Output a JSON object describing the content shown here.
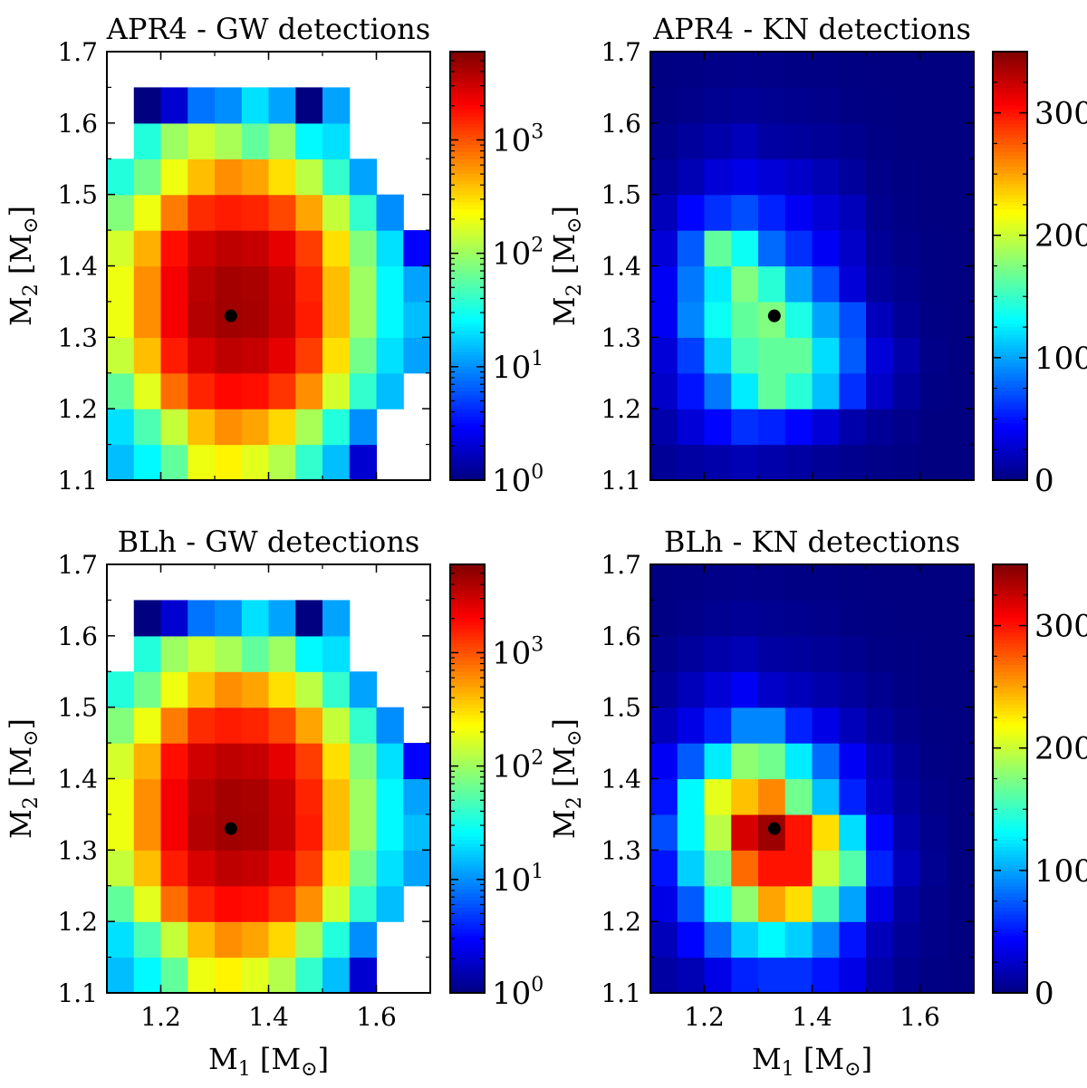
{
  "figure": {
    "xlabel_main": "M",
    "xlabel_sub": "1",
    "ylabel_main": "M",
    "ylabel_sub": "2",
    "unit_open": " [M",
    "unit_sun": "⊙",
    "unit_close": "]"
  },
  "chart_data": [
    {
      "id": "apr4-gw",
      "type": "heatmap",
      "title": "APR4 - GW detections",
      "x_edges": [
        1.1,
        1.15,
        1.2,
        1.25,
        1.3,
        1.35,
        1.4,
        1.45,
        1.5,
        1.55,
        1.6,
        1.65,
        1.7
      ],
      "y_edges": [
        1.1,
        1.15,
        1.2,
        1.25,
        1.3,
        1.35,
        1.4,
        1.45,
        1.5,
        1.55,
        1.6,
        1.65,
        1.7
      ],
      "xlim": [
        1.1,
        1.7
      ],
      "ylim": [
        1.1,
        1.7
      ],
      "xticks": [
        1.2,
        1.4,
        1.6
      ],
      "xtick_labels": [
        "1.2",
        "1.4",
        "1.6"
      ],
      "yticks": [
        1.1,
        1.2,
        1.3,
        1.4,
        1.5,
        1.6,
        1.7
      ],
      "ytick_labels": [
        "1.1",
        "1.2",
        "1.3",
        "1.4",
        "1.5",
        "1.6",
        "1.7"
      ],
      "show_xtick_labels": false,
      "show_xlabel": false,
      "marker": [
        1.33,
        1.33
      ],
      "z": [
        [
          15,
          25,
          60,
          200,
          250,
          180,
          120,
          40,
          15,
          2,
          null,
          null
        ],
        [
          20,
          50,
          140,
          400,
          600,
          500,
          320,
          110,
          35,
          10,
          null,
          null
        ],
        [
          60,
          180,
          800,
          1500,
          1900,
          1800,
          1300,
          600,
          160,
          40,
          15,
          null
        ],
        [
          140,
          400,
          1600,
          2800,
          3500,
          3300,
          2500,
          1200,
          300,
          70,
          20,
          12
        ],
        [
          200,
          600,
          2200,
          3800,
          4500,
          4300,
          3300,
          1600,
          400,
          100,
          25,
          15
        ],
        [
          200,
          600,
          2200,
          3600,
          4400,
          4200,
          3200,
          1500,
          400,
          100,
          25,
          12
        ],
        [
          160,
          450,
          1800,
          3000,
          3500,
          3300,
          2500,
          1200,
          300,
          80,
          20,
          3
        ],
        [
          80,
          200,
          700,
          1400,
          1600,
          1500,
          1100,
          500,
          140,
          40,
          10,
          null
        ],
        [
          35,
          70,
          200,
          400,
          600,
          500,
          300,
          130,
          40,
          12,
          null,
          null
        ],
        [
          null,
          35,
          100,
          150,
          110,
          60,
          100,
          25,
          20,
          null,
          null,
          null
        ],
        [
          null,
          1,
          2,
          8,
          10,
          20,
          12,
          1,
          12,
          null,
          null,
          null
        ],
        [
          null,
          null,
          null,
          null,
          null,
          null,
          null,
          null,
          null,
          null,
          null,
          null
        ]
      ],
      "colorbar": {
        "scale": "log",
        "vmin": 1,
        "vmax": 6000,
        "major_ticks": [
          1,
          10,
          100,
          1000
        ],
        "tick_labels": [
          {
            "base": "10",
            "exp": "0"
          },
          {
            "base": "10",
            "exp": "1"
          },
          {
            "base": "10",
            "exp": "2"
          },
          {
            "base": "10",
            "exp": "3"
          }
        ]
      }
    },
    {
      "id": "apr4-kn",
      "type": "heatmap",
      "title": "APR4 - KN detections",
      "x_edges": [
        1.1,
        1.15,
        1.2,
        1.25,
        1.3,
        1.35,
        1.4,
        1.45,
        1.5,
        1.55,
        1.6,
        1.65,
        1.7
      ],
      "y_edges": [
        1.1,
        1.15,
        1.2,
        1.25,
        1.3,
        1.35,
        1.4,
        1.45,
        1.5,
        1.55,
        1.6,
        1.65,
        1.7
      ],
      "xlim": [
        1.1,
        1.7
      ],
      "ylim": [
        1.1,
        1.7
      ],
      "xticks": [
        1.2,
        1.4,
        1.6
      ],
      "xtick_labels": [
        "1.2",
        "1.4",
        "1.6"
      ],
      "yticks": [
        1.1,
        1.2,
        1.3,
        1.4,
        1.5,
        1.6,
        1.7
      ],
      "ytick_labels": [
        "1.1",
        "1.2",
        "1.3",
        "1.4",
        "1.5",
        "1.6",
        "1.7"
      ],
      "show_xtick_labels": false,
      "show_xlabel": false,
      "marker": [
        1.33,
        1.33
      ],
      "z": [
        [
          8,
          12,
          15,
          18,
          15,
          12,
          8,
          5,
          3,
          2,
          0,
          0
        ],
        [
          15,
          30,
          45,
          60,
          55,
          45,
          30,
          15,
          8,
          4,
          0,
          0
        ],
        [
          25,
          50,
          85,
          125,
          165,
          145,
          110,
          60,
          25,
          10,
          2,
          0
        ],
        [
          30,
          65,
          115,
          155,
          165,
          165,
          120,
          75,
          30,
          15,
          3,
          0
        ],
        [
          40,
          90,
          135,
          165,
          175,
          140,
          100,
          70,
          20,
          8,
          2,
          0
        ],
        [
          40,
          85,
          125,
          175,
          145,
          100,
          70,
          30,
          10,
          5,
          1,
          0
        ],
        [
          30,
          75,
          165,
          135,
          80,
          60,
          40,
          25,
          8,
          3,
          1,
          0
        ],
        [
          20,
          45,
          60,
          70,
          55,
          40,
          30,
          20,
          5,
          2,
          0,
          0
        ],
        [
          10,
          18,
          30,
          35,
          30,
          25,
          18,
          10,
          3,
          1,
          0,
          0
        ],
        [
          5,
          10,
          15,
          20,
          12,
          10,
          8,
          5,
          2,
          0,
          0,
          0
        ],
        [
          2,
          4,
          6,
          8,
          6,
          5,
          4,
          2,
          1,
          0,
          0,
          0
        ],
        [
          1,
          2,
          3,
          4,
          3,
          2,
          2,
          1,
          0,
          0,
          0,
          0
        ]
      ],
      "colorbar": {
        "scale": "linear",
        "vmin": 0,
        "vmax": 350,
        "major_ticks": [
          0,
          100,
          200,
          300
        ],
        "tick_labels": [
          "0",
          "100",
          "200",
          "300"
        ]
      }
    },
    {
      "id": "blh-gw",
      "type": "heatmap",
      "title": "BLh - GW detections",
      "x_edges": [
        1.1,
        1.15,
        1.2,
        1.25,
        1.3,
        1.35,
        1.4,
        1.45,
        1.5,
        1.55,
        1.6,
        1.65,
        1.7
      ],
      "y_edges": [
        1.1,
        1.15,
        1.2,
        1.25,
        1.3,
        1.35,
        1.4,
        1.45,
        1.5,
        1.55,
        1.6,
        1.65,
        1.7
      ],
      "xlim": [
        1.1,
        1.7
      ],
      "ylim": [
        1.1,
        1.7
      ],
      "xticks": [
        1.2,
        1.4,
        1.6
      ],
      "xtick_labels": [
        "1.2",
        "1.4",
        "1.6"
      ],
      "yticks": [
        1.1,
        1.2,
        1.3,
        1.4,
        1.5,
        1.6,
        1.7
      ],
      "ytick_labels": [
        "1.1",
        "1.2",
        "1.3",
        "1.4",
        "1.5",
        "1.6",
        "1.7"
      ],
      "show_xtick_labels": true,
      "show_xlabel": true,
      "marker": [
        1.33,
        1.33
      ],
      "z": [
        [
          15,
          25,
          60,
          200,
          250,
          180,
          120,
          40,
          15,
          2,
          null,
          null
        ],
        [
          20,
          50,
          140,
          400,
          600,
          500,
          320,
          110,
          35,
          10,
          null,
          null
        ],
        [
          60,
          180,
          800,
          1500,
          1900,
          1800,
          1300,
          600,
          160,
          40,
          15,
          null
        ],
        [
          140,
          400,
          1600,
          2800,
          3500,
          3300,
          2500,
          1200,
          300,
          70,
          20,
          12
        ],
        [
          200,
          600,
          2200,
          3800,
          4500,
          4300,
          3300,
          1600,
          400,
          100,
          25,
          15
        ],
        [
          200,
          600,
          2200,
          3600,
          4400,
          4200,
          3200,
          1500,
          400,
          100,
          25,
          12
        ],
        [
          160,
          450,
          1800,
          3000,
          3500,
          3300,
          2500,
          1200,
          300,
          80,
          20,
          3
        ],
        [
          80,
          200,
          700,
          1400,
          1600,
          1500,
          1100,
          500,
          140,
          40,
          10,
          null
        ],
        [
          35,
          70,
          200,
          400,
          600,
          500,
          300,
          130,
          40,
          12,
          null,
          null
        ],
        [
          null,
          35,
          100,
          150,
          110,
          60,
          100,
          25,
          20,
          null,
          null,
          null
        ],
        [
          null,
          1,
          2,
          8,
          10,
          20,
          12,
          1,
          12,
          null,
          null,
          null
        ],
        [
          null,
          null,
          null,
          null,
          null,
          null,
          null,
          null,
          null,
          null,
          null,
          null
        ]
      ],
      "colorbar": {
        "scale": "log",
        "vmin": 1,
        "vmax": 6000,
        "major_ticks": [
          1,
          10,
          100,
          1000
        ],
        "tick_labels": [
          {
            "base": "10",
            "exp": "0"
          },
          {
            "base": "10",
            "exp": "1"
          },
          {
            "base": "10",
            "exp": "2"
          },
          {
            "base": "10",
            "exp": "3"
          }
        ]
      }
    },
    {
      "id": "blh-kn",
      "type": "heatmap",
      "title": "BLh - KN detections",
      "x_edges": [
        1.1,
        1.15,
        1.2,
        1.25,
        1.3,
        1.35,
        1.4,
        1.45,
        1.5,
        1.55,
        1.6,
        1.65,
        1.7
      ],
      "y_edges": [
        1.1,
        1.15,
        1.2,
        1.25,
        1.3,
        1.35,
        1.4,
        1.45,
        1.5,
        1.55,
        1.6,
        1.65,
        1.7
      ],
      "xlim": [
        1.1,
        1.7
      ],
      "ylim": [
        1.1,
        1.7
      ],
      "xticks": [
        1.2,
        1.4,
        1.6
      ],
      "xtick_labels": [
        "1.2",
        "1.4",
        "1.6"
      ],
      "yticks": [
        1.1,
        1.2,
        1.3,
        1.4,
        1.5,
        1.6,
        1.7
      ],
      "ytick_labels": [
        "1.1",
        "1.2",
        "1.3",
        "1.4",
        "1.5",
        "1.6",
        "1.7"
      ],
      "show_xtick_labels": true,
      "show_xlabel": true,
      "marker": [
        1.33,
        1.33
      ],
      "z": [
        [
          12,
          18,
          35,
          55,
          60,
          60,
          50,
          35,
          15,
          5,
          2,
          0
        ],
        [
          20,
          45,
          80,
          115,
          130,
          115,
          90,
          50,
          20,
          8,
          3,
          0
        ],
        [
          35,
          75,
          135,
          180,
          250,
          230,
          160,
          100,
          35,
          12,
          4,
          0
        ],
        [
          50,
          115,
          170,
          270,
          300,
          300,
          200,
          160,
          55,
          20,
          6,
          0
        ],
        [
          70,
          130,
          195,
          320,
          340,
          300,
          230,
          120,
          45,
          15,
          5,
          0
        ],
        [
          50,
          130,
          210,
          240,
          260,
          170,
          110,
          55,
          25,
          10,
          3,
          0
        ],
        [
          40,
          75,
          125,
          180,
          170,
          125,
          80,
          40,
          20,
          8,
          2,
          0
        ],
        [
          20,
          35,
          55,
          90,
          90,
          55,
          35,
          20,
          10,
          4,
          1,
          0
        ],
        [
          10,
          20,
          30,
          40,
          25,
          20,
          15,
          10,
          5,
          2,
          0,
          0
        ],
        [
          5,
          10,
          15,
          18,
          12,
          10,
          8,
          5,
          2,
          1,
          0,
          0
        ],
        [
          2,
          4,
          6,
          8,
          6,
          5,
          4,
          2,
          1,
          0,
          0,
          0
        ],
        [
          1,
          2,
          3,
          4,
          3,
          2,
          2,
          1,
          0,
          0,
          0,
          0
        ]
      ],
      "colorbar": {
        "scale": "linear",
        "vmin": 0,
        "vmax": 350,
        "major_ticks": [
          0,
          100,
          200,
          300
        ],
        "tick_labels": [
          "0",
          "100",
          "200",
          "300"
        ]
      }
    }
  ]
}
